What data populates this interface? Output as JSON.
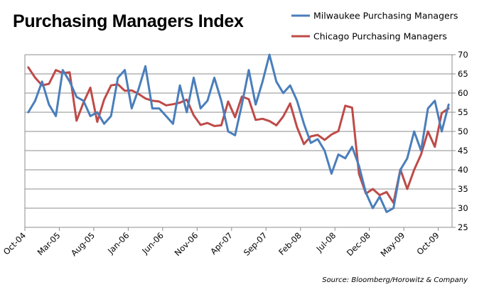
{
  "chart_data": {
    "type": "line",
    "title": "Purchasing Managers Index",
    "source": "Source: Bloomberg/Horowitz & Company",
    "ylim": [
      25,
      70
    ],
    "y_ticks": [
      25,
      30,
      35,
      40,
      45,
      50,
      55,
      60,
      65,
      70
    ],
    "grid": "horizontal",
    "legend_position": "top-right",
    "x_tick_labels": [
      "Oct-04",
      "Mar-05",
      "Aug-05",
      "Jan-06",
      "Jun-06",
      "Nov-06",
      "Apr-07",
      "Sep-07",
      "Feb-08",
      "Jul-08",
      "Dec-08",
      "May-09",
      "Oct-09"
    ],
    "x_start": "2004-10",
    "x_end": "2009-12",
    "series": [
      {
        "name": "Milwaukee Purchasing Managers",
        "color": "#4a7ebb",
        "values": [
          55,
          58,
          63,
          57,
          54,
          66,
          63,
          59,
          58,
          54,
          55,
          52,
          54,
          64,
          66,
          56,
          61,
          67,
          56,
          56,
          54,
          52,
          62,
          55,
          64,
          56,
          58,
          64,
          58,
          50,
          49,
          57,
          66,
          57,
          63,
          70,
          63,
          60,
          62,
          58,
          52,
          47,
          48,
          45,
          39,
          44,
          43,
          46,
          41,
          34,
          30,
          33,
          29,
          30,
          40,
          43,
          50,
          45,
          56,
          58,
          50,
          57
        ]
      },
      {
        "name": "Chicago Purchasing Managers",
        "color": "#be4b48",
        "values": [
          66.7,
          64,
          62,
          62.4,
          66,
          65.2,
          65.4,
          52.8,
          57.5,
          61.4,
          52.5,
          58.3,
          62,
          62.3,
          60.6,
          60.7,
          59.8,
          58.6,
          58,
          57.8,
          56.8,
          57.1,
          57.5,
          58.3,
          54.2,
          51.7,
          52.2,
          51.4,
          51.6,
          57.8,
          53.7,
          59.1,
          58.4,
          53,
          53.3,
          52.7,
          51.6,
          53.9,
          57.3,
          51.1,
          46.7,
          48.7,
          49.1,
          47.8,
          49.2,
          50.1,
          56.7,
          56.2,
          38.9,
          33.8,
          35.0,
          33.4,
          34.2,
          31.4,
          40.1,
          35.0,
          40,
          44,
          50,
          46,
          54.8,
          56
        ]
      }
    ]
  }
}
